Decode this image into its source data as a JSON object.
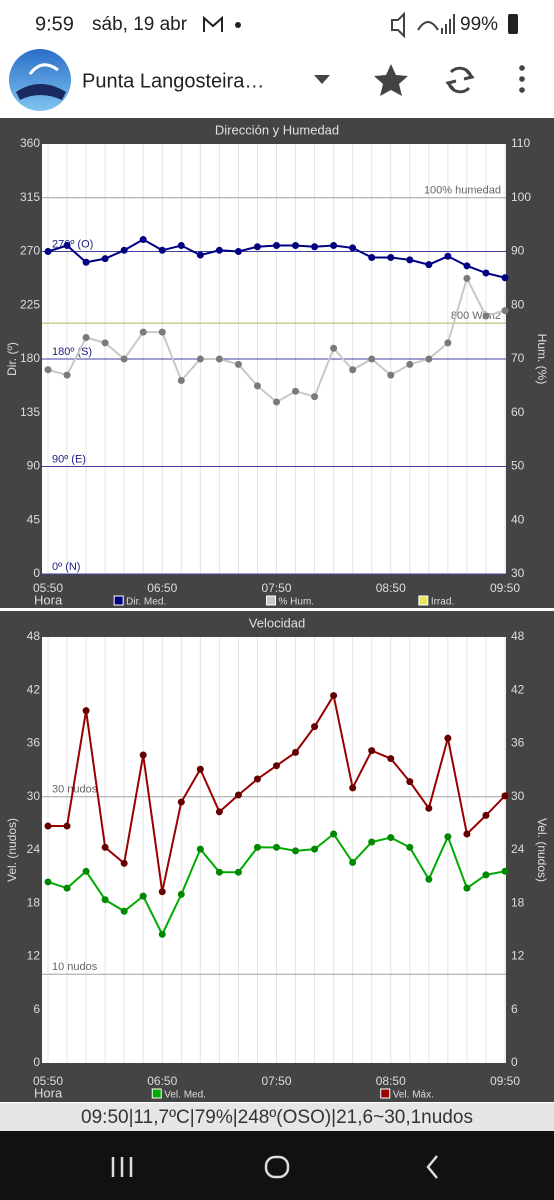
{
  "status_bar": {
    "time": "9:59",
    "date": "sáb, 19 abr",
    "battery": "99%"
  },
  "app_bar": {
    "title": "Punta Langosteira…"
  },
  "chart_data": [
    {
      "type": "line",
      "title": "Dirección y Humedad",
      "x": [
        350,
        360,
        370,
        380,
        390,
        400,
        410,
        420,
        430,
        440,
        450,
        460,
        470,
        480,
        490,
        500,
        510,
        520,
        530,
        540,
        550,
        560,
        570,
        580,
        590
      ],
      "xlim": [
        350,
        590
      ],
      "xticks": [
        {
          "value": 350,
          "label": "05:50"
        },
        {
          "value": 410,
          "label": "06:50"
        },
        {
          "value": 470,
          "label": "07:50"
        },
        {
          "value": 530,
          "label": "08:50"
        },
        {
          "value": 590,
          "label": "09:50"
        }
      ],
      "xlabel": "Hora",
      "ylabel": "Dir. (º)",
      "y2label": "Hum. (%)",
      "ylim": [
        0,
        360
      ],
      "yticks": [
        0,
        45,
        90,
        135,
        180,
        225,
        270,
        315,
        360
      ],
      "y2lim": [
        30,
        110
      ],
      "y2ticks": [
        30,
        40,
        50,
        60,
        70,
        80,
        90,
        100,
        110
      ],
      "vertical_grid": true,
      "reference_lines": [
        {
          "value": 100,
          "axis": "y2",
          "label": "100% humedad",
          "color": "#a0a0a0",
          "label_side": "right"
        },
        {
          "value": 270,
          "label": "270º (O)",
          "color": "#4040a0"
        },
        {
          "value": 210,
          "label": "800 W/m2",
          "color": "#b0b060",
          "label_side": "right"
        },
        {
          "value": 180,
          "label": "180º (S)",
          "color": "#4040a0"
        },
        {
          "value": 90,
          "label": "90º (E)",
          "color": "#4040a0"
        },
        {
          "value": 0,
          "label": "0º (N)",
          "color": "#4040a0"
        }
      ],
      "series": [
        {
          "name": "Dir. Med.",
          "color": "#000080",
          "marker_color": "#000080",
          "values": [
            270,
            275,
            261,
            264,
            271,
            280,
            271,
            275,
            267,
            271,
            270,
            274,
            275,
            275,
            274,
            275,
            273,
            265,
            265,
            263,
            259,
            266,
            258,
            252,
            248
          ]
        },
        {
          "name": "% Hum.",
          "color": "#c8c8c8",
          "marker_color": "#7a7a7a",
          "axis": "y2",
          "values": [
            68,
            67,
            74,
            73,
            70,
            75,
            75,
            66,
            70,
            70,
            69,
            65,
            62,
            64,
            63,
            72,
            68,
            70,
            67,
            69,
            70,
            73,
            85,
            78,
            79
          ]
        },
        {
          "name": "Irrad.",
          "color": "#e8e860",
          "marker_color": "#e8e860",
          "values": [
            null,
            null,
            null,
            null,
            null,
            null,
            null,
            null,
            null,
            null,
            null,
            null,
            null,
            null,
            null,
            null,
            null,
            null,
            null,
            null,
            null,
            null,
            null,
            null,
            null
          ]
        }
      ]
    },
    {
      "type": "line",
      "title": "Velocidad",
      "x": [
        350,
        360,
        370,
        380,
        390,
        400,
        410,
        420,
        430,
        440,
        450,
        460,
        470,
        480,
        490,
        500,
        510,
        520,
        530,
        540,
        550,
        560,
        570,
        580,
        590
      ],
      "xlim": [
        350,
        590
      ],
      "xticks": [
        {
          "value": 350,
          "label": "05:50"
        },
        {
          "value": 410,
          "label": "06:50"
        },
        {
          "value": 470,
          "label": "07:50"
        },
        {
          "value": 530,
          "label": "08:50"
        },
        {
          "value": 590,
          "label": "09:50"
        }
      ],
      "xlabel": "Hora",
      "ylabel": "Vel. (nudos)",
      "y2label": "Vel. (nudos)",
      "ylim": [
        0,
        48
      ],
      "yticks": [
        0,
        6,
        12,
        18,
        24,
        30,
        36,
        42,
        48
      ],
      "y2lim": [
        0,
        48
      ],
      "y2ticks": [
        0,
        6,
        12,
        18,
        24,
        30,
        36,
        42,
        48
      ],
      "vertical_grid": true,
      "reference_lines": [
        {
          "value": 30,
          "label": "30 nudos",
          "color": "#a0a0a0"
        },
        {
          "value": 10,
          "label": "10 nudos",
          "color": "#a0a0a0"
        }
      ],
      "series": [
        {
          "name": "Vel. Med.",
          "color": "#00aa00",
          "marker_color": "#008800",
          "values": [
            20.4,
            19.7,
            21.6,
            18.4,
            17.1,
            18.8,
            14.5,
            19.0,
            24.1,
            21.5,
            21.5,
            24.3,
            24.3,
            23.9,
            24.1,
            25.8,
            22.6,
            24.9,
            25.4,
            24.3,
            20.7,
            25.5,
            19.7,
            21.2,
            21.6
          ]
        },
        {
          "name": "Vel. Máx.",
          "color": "#990000",
          "marker_color": "#660000",
          "values": [
            26.7,
            26.7,
            39.7,
            24.3,
            22.5,
            34.7,
            19.3,
            29.4,
            33.1,
            28.3,
            30.2,
            32.0,
            33.5,
            35.0,
            37.9,
            41.4,
            31.0,
            35.2,
            34.3,
            31.7,
            28.7,
            36.6,
            25.8,
            27.9,
            30.1
          ]
        }
      ]
    }
  ],
  "footer": "09:50|11,7ºC|79%|248º(OSO)|21,6~30,1nudos"
}
